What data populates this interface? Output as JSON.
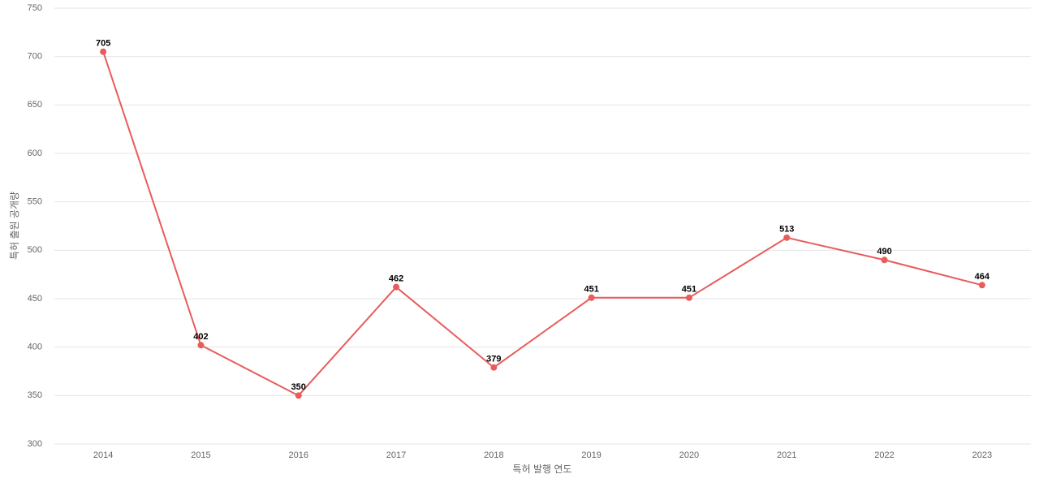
{
  "chart_data": {
    "type": "line",
    "x_label": "특허 발행 연도",
    "y_label": "특허 출원 공개량",
    "categories": [
      "2014",
      "2015",
      "2016",
      "2017",
      "2018",
      "2019",
      "2020",
      "2021",
      "2022",
      "2023"
    ],
    "series": [
      {
        "color": "#e85c5c",
        "values": [
          705,
          402,
          350,
          462,
          379,
          451,
          451,
          513,
          490,
          464
        ]
      }
    ],
    "ylim": [
      300,
      750
    ],
    "yticks": [
      300,
      350,
      400,
      450,
      500,
      550,
      600,
      650,
      700,
      750
    ],
    "grid": true
  }
}
